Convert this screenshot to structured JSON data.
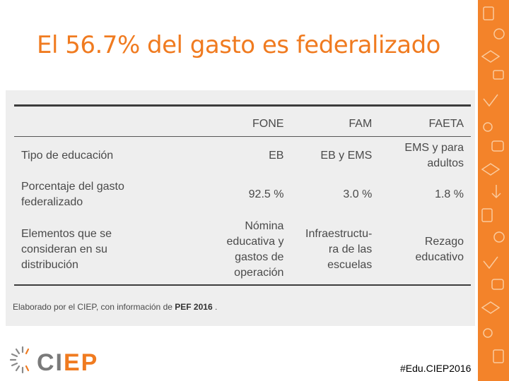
{
  "slide": {
    "title": "El 56.7% del gasto es federalizado",
    "hashtag": "#Edu.CIEP2016"
  },
  "table": {
    "headers": [
      "",
      "FONE",
      "FAM",
      "FAETA"
    ],
    "rows": [
      {
        "label": "Tipo de educación",
        "cells": [
          "EB",
          "EB y EMS",
          "EMS y para adultos"
        ]
      },
      {
        "label": "Porcentaje del gasto federalizado",
        "cells": [
          "92.5 %",
          "3.0 %",
          "1.8 %"
        ]
      },
      {
        "label": "Elementos que se consideran en su distribución",
        "cells": [
          "Nómina educativa y gastos de operación",
          "Infraestructu-ra de las escuelas",
          "Rezago educativo"
        ]
      }
    ]
  },
  "note": {
    "prefix": "Elaborado por el CIEP, con información de ",
    "source": "PEF 2016",
    "suffix": " ."
  },
  "logo": {
    "text": "CIEP",
    "colors": {
      "ci": "#7a7a7a",
      "ep": "#f07b20"
    }
  },
  "colors": {
    "accent": "#f07b20",
    "strip": "#f3832a"
  }
}
